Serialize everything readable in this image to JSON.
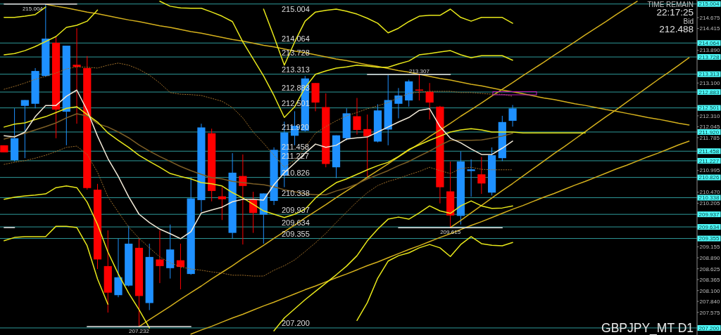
{
  "chart_data": {
    "type": "candlestick",
    "title": "GBPJPY_MT D1",
    "annotations": [
      "TIME REMAIN",
      "22:17:25",
      "Bid",
      "212.488"
    ],
    "categories": [
      null,
      null,
      null,
      null,
      null,
      null,
      null,
      null,
      null,
      null,
      null,
      null,
      null,
      null,
      null,
      null,
      null,
      null,
      null,
      null,
      null,
      null,
      null,
      null,
      null,
      null,
      null,
      null,
      null,
      null,
      null,
      null,
      null,
      null,
      null,
      null,
      null,
      null,
      null,
      null,
      null,
      null,
      null,
      null,
      null,
      null,
      null,
      null,
      null,
      null,
      null,
      null,
      null,
      null,
      null,
      null,
      null,
      null,
      null,
      null,
      null,
      null,
      null,
      null,
      null,
      null,
      null
    ],
    "ohlc": [
      [
        211.6,
        211.6,
        211.43,
        211.43
      ],
      [
        211.24,
        212.49,
        211.21,
        211.77
      ],
      [
        212.55,
        212.69,
        211.29,
        212.69
      ],
      [
        212.6,
        213.46,
        212.49,
        213.39
      ],
      [
        213.27,
        215.004,
        213.25,
        214.17
      ],
      [
        214.07,
        214.23,
        211.77,
        212.46
      ],
      [
        212.41,
        214.0,
        211.6,
        214.0
      ],
      [
        213.54,
        214.42,
        212.12,
        213.49
      ],
      [
        213.46,
        213.75,
        210.53,
        210.57
      ],
      [
        210.53,
        210.67,
        208.62,
        208.85
      ],
      [
        208.69,
        209.55,
        207.57,
        208.05
      ],
      [
        207.99,
        209.35,
        207.94,
        208.42
      ],
      [
        208.22,
        209.66,
        208.2,
        209.23
      ],
      [
        209.13,
        209.35,
        207.232,
        207.97
      ],
      [
        207.8,
        209.23,
        207.63,
        208.91
      ],
      [
        208.85,
        209.55,
        208.28,
        208.69
      ],
      [
        208.64,
        209.69,
        208.39,
        209.09
      ],
      [
        208.83,
        209.23,
        208.13,
        208.67
      ],
      [
        208.5,
        210.84,
        208.48,
        210.32
      ],
      [
        210.28,
        212.12,
        210.0,
        212.03
      ],
      [
        211.89,
        212.0,
        210.25,
        210.5
      ],
      [
        210.37,
        210.59,
        209.8,
        210.3
      ],
      [
        209.49,
        211.41,
        209.35,
        210.94
      ],
      [
        210.86,
        211.38,
        209.21,
        210.62
      ],
      [
        210.29,
        210.48,
        209.49,
        209.97
      ],
      [
        209.93,
        210.44,
        209.23,
        210.44
      ],
      [
        210.26,
        211.55,
        210.16,
        211.49
      ],
      [
        210.87,
        212.17,
        210.59,
        211.91
      ],
      [
        211.83,
        212.42,
        211.6,
        212.07
      ],
      [
        211.95,
        213.27,
        211.93,
        213.21
      ],
      [
        213.1,
        213.1,
        212.42,
        212.63
      ],
      [
        212.52,
        212.85,
        211.07,
        211.15
      ],
      [
        211.07,
        211.84,
        210.81,
        211.84
      ],
      [
        211.77,
        212.49,
        211.72,
        212.37
      ],
      [
        212.3,
        212.74,
        211.86,
        211.97
      ],
      [
        211.99,
        212.34,
        210.81,
        211.82
      ],
      [
        211.69,
        212.59,
        211.67,
        212.44
      ],
      [
        211.98,
        213.29,
        211.6,
        212.69
      ],
      [
        212.6,
        212.98,
        212.25,
        212.8
      ],
      [
        212.68,
        213.18,
        212.53,
        213.14
      ],
      [
        212.94,
        213.307,
        212.68,
        212.92
      ],
      [
        212.89,
        213.1,
        212.22,
        212.63
      ],
      [
        212.53,
        212.55,
        210.2,
        210.59
      ],
      [
        210.49,
        211.21,
        209.615,
        209.91
      ],
      [
        209.9,
        211.45,
        209.69,
        211.21
      ],
      [
        210.98,
        211.26,
        210.36,
        211.02
      ],
      [
        210.9,
        211.32,
        210.43,
        210.68
      ],
      [
        210.46,
        211.55,
        210.39,
        211.36
      ],
      [
        211.29,
        212.31,
        211.22,
        212.16
      ],
      [
        212.19,
        212.57,
        212.05,
        212.488
      ],
      null,
      null,
      null,
      null,
      null,
      null,
      null,
      null,
      null,
      null,
      null,
      null,
      null,
      null,
      null,
      null,
      null
    ],
    "colors": [
      "#ff0000",
      "#1e90ff",
      "#1e90ff",
      "#1e90ff",
      "#1e90ff",
      "#ff0000",
      "#1e90ff",
      "#ff0000",
      "#ff0000",
      "#ff0000",
      "#ff0000",
      "#1e90ff",
      "#1e90ff",
      "#ff0000",
      "#1e90ff",
      "#ff0000",
      "#1e90ff",
      "#ff0000",
      "#1e90ff",
      "#1e90ff",
      "#ff0000",
      "#ff0000",
      "#1e90ff",
      "#ff0000",
      "#ff0000",
      "#1e90ff",
      "#1e90ff",
      "#1e90ff",
      "#1e90ff",
      "#1e90ff",
      "#ff0000",
      "#ff0000",
      "#1e90ff",
      "#1e90ff",
      "#ff0000",
      "#ff0000",
      "#1e90ff",
      "#1e90ff",
      "#1e90ff",
      "#1e90ff",
      "#ff0000",
      "#ff0000",
      "#ff0000",
      "#ff0000",
      "#1e90ff",
      "#1e90ff",
      "#ff0000",
      "#1e90ff",
      "#1e90ff",
      "#1e90ff",
      null,
      null,
      null,
      null,
      null,
      null,
      null,
      null,
      null,
      null,
      null,
      null,
      null,
      null,
      null,
      null,
      null
    ],
    "series": [
      {
        "type": "line",
        "color": "#d4b01c",
        "values": [
          null,
          null,
          null,
          null,
          215.0,
          214.95,
          214.91,
          214.86,
          214.81,
          214.77,
          214.72,
          214.67,
          214.62,
          214.58,
          214.53,
          214.48,
          214.44,
          214.39,
          214.34,
          214.3,
          214.25,
          214.2,
          214.15,
          214.11,
          214.06,
          214.01,
          213.97,
          213.92,
          213.87,
          213.83,
          213.78,
          213.73,
          213.68,
          213.64,
          213.59,
          213.54,
          213.5,
          213.45,
          213.4,
          213.36,
          213.31,
          213.26,
          213.21,
          213.17,
          213.12,
          213.07,
          213.03,
          212.98,
          212.93,
          212.89,
          212.84,
          212.79,
          212.74,
          212.7,
          212.65,
          212.6,
          212.56,
          212.51,
          212.46,
          212.42,
          212.37,
          212.32,
          212.27,
          212.23,
          212.18,
          212.13,
          212.09
        ]
      },
      {
        "type": "line",
        "color": "#d4b01c",
        "values": [
          null,
          null,
          null,
          null,
          null,
          null,
          null,
          null,
          null,
          null,
          null,
          null,
          null,
          207.23,
          207.4,
          207.56,
          207.72,
          207.89,
          208.05,
          208.21,
          208.38,
          208.54,
          208.7,
          208.87,
          209.03,
          209.19,
          209.36,
          209.52,
          209.68,
          209.85,
          210.01,
          210.17,
          210.34,
          210.5,
          210.66,
          210.83,
          210.99,
          211.15,
          211.32,
          211.48,
          211.64,
          211.81,
          211.97,
          212.13,
          212.3,
          212.46,
          212.62,
          212.79,
          212.95,
          213.11,
          213.28,
          213.44,
          213.6,
          213.77,
          213.93,
          214.09,
          214.26,
          214.42,
          214.58,
          214.75,
          214.91,
          215.07,
          null,
          null,
          null,
          null,
          null
        ]
      },
      {
        "type": "line",
        "color": "#d4b01c",
        "values": [
          null,
          null,
          null,
          null,
          null,
          null,
          null,
          null,
          null,
          null,
          null,
          null,
          null,
          null,
          null,
          null,
          null,
          null,
          null,
          null,
          null,
          null,
          null,
          null,
          null,
          null,
          null,
          null,
          null,
          null,
          null,
          null,
          null,
          null,
          null,
          null,
          null,
          null,
          null,
          null,
          null,
          null,
          null,
          209.62,
          209.79,
          209.97,
          210.15,
          210.33,
          210.51,
          210.68,
          210.86,
          211.04,
          211.22,
          211.4,
          211.57,
          211.75,
          211.93,
          212.11,
          212.29,
          212.46,
          212.64,
          212.82,
          213.0,
          213.18,
          213.35,
          213.53,
          213.71
        ]
      },
      {
        "type": "line",
        "color": "#d4b01c",
        "values": [
          null,
          null,
          null,
          null,
          null,
          null,
          null,
          null,
          null,
          null,
          null,
          null,
          null,
          null,
          null,
          null,
          null,
          null,
          207.05,
          207.15,
          207.24,
          207.34,
          207.44,
          207.53,
          207.63,
          207.73,
          207.82,
          207.92,
          208.02,
          208.12,
          208.21,
          208.31,
          208.41,
          208.5,
          208.6,
          208.7,
          208.79,
          208.89,
          208.99,
          209.09,
          209.18,
          209.28,
          209.38,
          209.47,
          209.57,
          209.67,
          209.76,
          209.86,
          209.96,
          210.06,
          210.15,
          210.25,
          210.35,
          210.44,
          210.54,
          210.64,
          210.73,
          210.83,
          210.93,
          211.03,
          211.12,
          211.22,
          211.32,
          211.41,
          211.51,
          211.61,
          211.7
        ]
      },
      {
        "type": "line",
        "color": "#a0702a",
        "line_style": "dotted",
        "values": [
          212.95,
          213.02,
          213.1,
          213.19,
          213.26,
          213.34,
          213.44,
          213.49,
          213.48,
          213.46,
          213.53,
          213.58,
          213.53,
          213.43,
          213.29,
          213.1,
          212.87,
          212.83,
          212.82,
          212.8,
          212.73,
          212.66,
          212.51,
          212.26,
          211.92,
          211.65,
          211.36,
          211.07,
          211.24,
          211.55,
          211.89,
          212.05,
          212.19,
          212.31,
          212.39,
          212.48,
          212.55,
          212.63,
          212.75,
          212.85,
          212.88,
          212.9,
          212.9,
          212.9,
          212.87,
          212.87,
          212.85,
          212.83,
          212.83,
          212.78,
          null,
          null,
          null,
          null,
          null,
          null,
          null,
          null,
          null,
          null,
          null,
          null,
          null,
          null,
          null,
          null,
          null
        ]
      },
      {
        "type": "line",
        "color": "#a0702a",
        "line_style": "dotted",
        "values": [
          211.14,
          211.19,
          211.23,
          211.29,
          211.36,
          211.45,
          211.55,
          211.58,
          211.38,
          210.95,
          210.36,
          209.99,
          209.63,
          209.36,
          209.13,
          208.91,
          208.77,
          208.67,
          208.62,
          208.59,
          208.55,
          208.52,
          208.47,
          208.47,
          208.45,
          208.45,
          208.59,
          208.7,
          208.84,
          209.04,
          209.25,
          209.48,
          209.74,
          209.99,
          210.24,
          210.46,
          210.63,
          210.73,
          210.8,
          210.89,
          210.97,
          211.07,
          210.99,
          210.92,
          211.04,
          211.07,
          211.02,
          211.01,
          211.01,
          211.01,
          null,
          null,
          null,
          null,
          null,
          null,
          null,
          null,
          null,
          null,
          null,
          null,
          null,
          null,
          null,
          null,
          null
        ]
      },
      {
        "type": "line",
        "color": "#7d5f26",
        "values": [
          211.75,
          211.82,
          211.89,
          211.97,
          212.05,
          212.14,
          212.26,
          212.36,
          212.31,
          212.12,
          212.04,
          211.92,
          211.78,
          211.61,
          211.46,
          211.33,
          211.21,
          211.09,
          210.99,
          210.9,
          210.82,
          210.79,
          210.73,
          210.7,
          210.67,
          210.65,
          210.6,
          210.53,
          210.48,
          210.43,
          210.41,
          210.41,
          210.5,
          210.57,
          210.67,
          210.79,
          210.89,
          210.99,
          211.11,
          211.21,
          211.34,
          211.46,
          211.6,
          211.72,
          211.72,
          211.72,
          211.73,
          211.77,
          211.82,
          211.89,
          null,
          null,
          null,
          null,
          null,
          null,
          null,
          null,
          null,
          null,
          null,
          null,
          null,
          null,
          null,
          null,
          null
        ]
      },
      {
        "type": "line",
        "color": "#e8e81a",
        "values": [
          212.04,
          212.11,
          212.14,
          212.22,
          212.29,
          212.39,
          212.49,
          212.53,
          212.34,
          212.16,
          211.9,
          211.72,
          211.55,
          211.36,
          211.21,
          211.07,
          210.92,
          210.85,
          210.79,
          210.7,
          210.67,
          210.62,
          210.46,
          210.33,
          210.18,
          210.02,
          209.94,
          209.86,
          209.94,
          210.06,
          210.33,
          210.53,
          210.7,
          210.79,
          210.9,
          211.01,
          211.11,
          211.19,
          211.33,
          211.5,
          211.61,
          211.72,
          211.82,
          211.92,
          211.97,
          212.0,
          211.97,
          211.92,
          211.92,
          211.92,
          211.9,
          211.9,
          211.9,
          211.9,
          211.9,
          211.9,
          211.9,
          null,
          null,
          null,
          null,
          null,
          null,
          null,
          null,
          null,
          null
        ]
      },
      {
        "type": "line",
        "color": "#e8e81a",
        "values": [
          213.78,
          213.81,
          213.88,
          213.98,
          214.1,
          214.22,
          214.44,
          214.49,
          214.59,
          214.86,
          null,
          null,
          null,
          null,
          null,
          215.07,
          214.95,
          214.91,
          214.9,
          214.9,
          214.81,
          214.71,
          214.58,
          214.09,
          213.68,
          213.27,
          212.8,
          212.27,
          212.53,
          212.99,
          213.31,
          213.39,
          213.46,
          213.49,
          213.53,
          213.51,
          213.48,
          213.48,
          213.56,
          213.63,
          213.78,
          213.81,
          213.85,
          213.88,
          213.78,
          213.71,
          213.76,
          213.76,
          213.76,
          213.65,
          null,
          null,
          null,
          null,
          null,
          null,
          null,
          null,
          null,
          null,
          null,
          null,
          null,
          null,
          null,
          null,
          null
        ]
      },
      {
        "type": "line",
        "color": "#e8e81a",
        "values": [
          214.68,
          214.68,
          214.71,
          214.75,
          214.93,
          null,
          null,
          null,
          null,
          null,
          null,
          null,
          null,
          null,
          null,
          null,
          null,
          null,
          null,
          null,
          null,
          null,
          null,
          null,
          null,
          214.88,
          214.22,
          213.53,
          214.09,
          214.59,
          214.81,
          214.85,
          214.88,
          214.83,
          214.76,
          214.66,
          214.54,
          214.31,
          214.42,
          214.58,
          214.71,
          214.73,
          214.73,
          214.88,
          214.68,
          214.59,
          214.68,
          214.68,
          214.68,
          214.54,
          null,
          null,
          null,
          null,
          null,
          null,
          null,
          null,
          null,
          null,
          null,
          null,
          null,
          null,
          null,
          null,
          null
        ]
      },
      {
        "type": "line",
        "color": "#e8e81a",
        "values": [
          210.3,
          210.35,
          210.38,
          210.4,
          210.43,
          210.58,
          210.62,
          210.58,
          210.23,
          209.69,
          209.03,
          208.5,
          208.04,
          207.64,
          207.2,
          null,
          null,
          null,
          null,
          null,
          null,
          null,
          null,
          null,
          null,
          null,
          207.13,
          207.44,
          207.66,
          207.88,
          208.08,
          208.28,
          208.48,
          208.69,
          208.94,
          209.3,
          209.58,
          209.82,
          209.87,
          209.82,
          209.97,
          210.14,
          210.02,
          209.96,
          210.14,
          210.26,
          210.14,
          210.08,
          210.09,
          210.14,
          null,
          null,
          null,
          null,
          null,
          null,
          null,
          null,
          null,
          null,
          null,
          null,
          null,
          null,
          null,
          null,
          null
        ]
      },
      {
        "type": "line",
        "color": "#e8e81a",
        "values": [
          209.3,
          209.38,
          209.4,
          209.4,
          209.4,
          209.65,
          209.65,
          209.62,
          209.18,
          208.38,
          207.77,
          null,
          null,
          null,
          null,
          null,
          null,
          null,
          null,
          null,
          null,
          null,
          null,
          null,
          null,
          null,
          null,
          null,
          null,
          null,
          null,
          null,
          null,
          null,
          207.38,
          207.81,
          208.4,
          208.81,
          208.94,
          209.01,
          209.13,
          209.21,
          209.13,
          208.92,
          209.21,
          209.4,
          209.23,
          209.19,
          209.18,
          209.26,
          null,
          null,
          null,
          null,
          null,
          null,
          null,
          null,
          null,
          null,
          null,
          null,
          null,
          null,
          null,
          null,
          null
        ]
      },
      {
        "type": "line",
        "color": "#f2ead8",
        "values": [
          211.83,
          211.8,
          211.92,
          212.29,
          212.56,
          212.56,
          212.78,
          212.93,
          212.44,
          211.82,
          211.28,
          210.85,
          210.36,
          209.94,
          209.74,
          209.58,
          209.47,
          209.35,
          209.52,
          209.97,
          210.04,
          210.11,
          210.24,
          210.3,
          210.3,
          210.28,
          210.65,
          210.94,
          211.17,
          211.41,
          211.63,
          211.55,
          211.6,
          211.75,
          211.78,
          211.8,
          211.92,
          212.04,
          212.16,
          212.27,
          212.44,
          212.48,
          212.05,
          211.77,
          211.66,
          211.51,
          211.38,
          211.38,
          211.53,
          211.7,
          null,
          null,
          null,
          null,
          null,
          null,
          null,
          null,
          null,
          null,
          null,
          null,
          null,
          null,
          null,
          null,
          null
        ]
      },
      {
        "type": "line",
        "name": "215.004",
        "color": "#e6e6e6",
        "values": [
          215.004,
          215.004,
          215.004,
          215.004,
          215.004,
          215.004,
          215.004,
          215.004,
          null,
          null,
          null,
          null,
          null,
          null,
          null,
          null,
          null,
          null,
          null,
          null,
          null,
          null,
          null,
          null,
          null,
          null,
          null,
          null,
          null,
          null,
          null,
          null,
          null,
          null,
          null,
          null,
          null,
          null,
          null,
          null,
          null,
          null,
          null,
          null,
          null,
          null,
          null,
          null,
          null,
          null,
          null,
          null,
          null,
          null,
          null,
          null,
          null,
          null,
          null,
          null,
          null,
          null,
          null,
          null,
          null,
          null,
          null
        ]
      },
      {
        "type": "line",
        "name": "207.232",
        "color": "#e6e6e6",
        "values": [
          null,
          null,
          null,
          null,
          null,
          null,
          null,
          null,
          207.232,
          207.232,
          207.232,
          207.232,
          207.232,
          207.232,
          207.232,
          207.232,
          207.232,
          207.232,
          207.232,
          null,
          null,
          null,
          null,
          null,
          null,
          null,
          null,
          null,
          null,
          null,
          null,
          null,
          null,
          null,
          null,
          null,
          null,
          null,
          null,
          null,
          null,
          null,
          null,
          null,
          null,
          null,
          null,
          null,
          null,
          null,
          null,
          null,
          null,
          null,
          null,
          null,
          null,
          null,
          null,
          null,
          null,
          null,
          null,
          null,
          null,
          null,
          null
        ]
      },
      {
        "type": "line",
        "name": "213.307",
        "color": "#e6e6e6",
        "values": [
          null,
          null,
          null,
          null,
          null,
          null,
          null,
          null,
          null,
          null,
          null,
          null,
          null,
          null,
          null,
          null,
          null,
          null,
          null,
          null,
          null,
          null,
          null,
          null,
          null,
          null,
          null,
          null,
          null,
          null,
          null,
          null,
          null,
          null,
          null,
          213.307,
          213.307,
          213.307,
          213.307,
          213.307,
          213.307,
          213.307,
          213.307,
          213.307,
          null,
          null,
          null,
          null,
          null,
          null,
          null,
          null,
          null,
          null,
          null,
          null,
          null,
          null,
          null,
          null,
          null,
          null,
          null,
          null,
          null,
          null,
          null
        ]
      },
      {
        "type": "line",
        "name": "209.615",
        "color": "#e6e6e6",
        "values": [
          null,
          null,
          null,
          null,
          null,
          null,
          null,
          null,
          null,
          null,
          null,
          null,
          null,
          null,
          null,
          null,
          null,
          null,
          null,
          null,
          null,
          null,
          null,
          null,
          null,
          null,
          null,
          null,
          null,
          null,
          null,
          null,
          null,
          null,
          null,
          null,
          null,
          null,
          209.615,
          209.615,
          209.615,
          209.615,
          209.615,
          209.615,
          209.615,
          209.615,
          209.615,
          209.615,
          209.615,
          null,
          null,
          null,
          null,
          null,
          null,
          null,
          null,
          null,
          null,
          null,
          null,
          null,
          null,
          null,
          null,
          null,
          null
        ]
      },
      {
        "type": "line",
        "color": "#e6e6e6",
        "values": [
          209.62,
          209.62,
          null,
          null,
          null,
          null,
          null,
          null,
          null,
          null,
          null,
          null,
          null,
          null,
          null,
          null,
          null,
          null,
          null,
          null,
          null,
          null,
          null,
          null,
          null,
          null,
          null,
          null,
          null,
          null,
          null,
          null,
          null,
          null,
          null,
          null,
          null,
          null,
          null,
          null,
          null,
          null,
          null,
          null,
          null,
          null,
          null,
          null,
          null,
          null,
          null,
          null,
          null,
          null,
          null,
          null,
          null,
          null,
          null,
          null,
          null,
          null,
          null,
          null,
          null,
          null,
          null
        ]
      }
    ],
    "ylim": [
      207.03,
      215.1
    ],
    "yticks": [
      214.675,
      214.415,
      {
        "value": 213.89,
        "label": "213.890"
      },
      {
        "value": 213.1,
        "label": "213.100"
      },
      {
        "value": 212.31,
        "label": "212.310"
      },
      212.045,
      211.785,
      210.995,
      {
        "value": 210.47,
        "label": "210.470"
      },
      210.205,
      209.155,
      {
        "value": 208.89,
        "label": "208.890"
      },
      208.625,
      208.365,
      {
        "value": 208.1,
        "label": "208.100"
      },
      {
        "value": 207.84,
        "label": "207.840"
      },
      207.575
    ],
    "tick_labels": "y",
    "ref_lines": [
      {
        "axis": "y",
        "value": 215.004,
        "label": "215.004",
        "color": "#2e9a9a"
      },
      {
        "axis": "y",
        "value": 214.064,
        "label": "214.064",
        "color": "#2e9a9a"
      },
      {
        "axis": "y",
        "value": 213.728,
        "label": "213.728",
        "color": "#2e9a9a"
      },
      {
        "axis": "y",
        "value": 213.313,
        "label": "213.313",
        "color": "#2e9a9a"
      },
      {
        "axis": "y",
        "value": 212.883,
        "label": "212.883",
        "color": "#2e9a9a"
      },
      {
        "axis": "y",
        "value": 212.501,
        "label": "212.501",
        "color": "#2e9a9a"
      },
      {
        "axis": "y",
        "value": 211.92,
        "label": "211.920",
        "color": "#2e9a9a"
      },
      {
        "axis": "y",
        "value": 211.458,
        "label": "211.458",
        "color": "#2e9a9a"
      },
      {
        "axis": "y",
        "value": 211.227,
        "label": "211.227",
        "color": "#2e9a9a"
      },
      {
        "axis": "y",
        "value": 210.826,
        "label": "210.826",
        "color": "#2e9a9a"
      },
      {
        "axis": "y",
        "value": 210.338,
        "label": "210.338",
        "color": "#2e9a9a"
      },
      {
        "axis": "y",
        "value": 209.937,
        "label": "209.937",
        "color": "#2e9a9a"
      },
      {
        "axis": "y",
        "value": 209.634,
        "label": "209.634",
        "color": "#2e9a9a"
      },
      {
        "axis": "y",
        "value": 209.355,
        "label": "209.355",
        "color": "#2e9a9a"
      },
      {
        "axis": "y",
        "value": 207.2,
        "label": "207.200",
        "color": "#2e9a9a"
      }
    ]
  }
}
